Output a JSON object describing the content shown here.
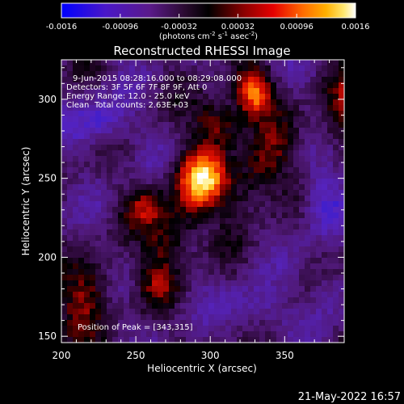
{
  "colorbar": {
    "tick_labels": [
      "-0.0016",
      "-0.00096",
      "-0.00032",
      "0.00032",
      "0.00096",
      "0.0016"
    ],
    "vmin": -0.0016,
    "vmax": 0.0016,
    "unit_label": "(photons cm",
    "unit_exp1": "-2",
    "unit_mid": " s",
    "unit_exp2": "-1",
    "unit_mid2": " asec",
    "unit_exp3": "-2",
    "unit_close": ")"
  },
  "chart_data": {
    "type": "heatmap",
    "title": "Reconstructed RHESSI Image",
    "xlabel": "Heliocentric X (arcsec)",
    "ylabel": "Heliocentric Y (arcsec)",
    "xlim": [
      200,
      390
    ],
    "ylim": [
      146,
      325
    ],
    "x_ticks": [
      200,
      250,
      300,
      350
    ],
    "y_ticks": [
      150,
      200,
      250,
      300
    ],
    "x_tick_labels": [
      "200",
      "250",
      "300",
      "350"
    ],
    "y_tick_labels": [
      "150",
      "200",
      "250",
      "300"
    ],
    "colorscale": "RHESSI standard (blue-purple-black-red-orange-yellow-white)",
    "peak_position": [
      343,
      315
    ],
    "annotations": {
      "time_range": "9-Jun-2015 08:28:16.000 to 08:29:08.000",
      "detectors": "Detectors: 3F 5F 6F 7F 8F 9F, Att 0",
      "energy_range": "Energy Range: 12.0 - 25.0 keV",
      "method": "Clean",
      "total_counts": "Total counts: 2.63E+03",
      "peak_label": "Position of Peak = [343,315]"
    }
  },
  "footer": {
    "date": "21-May-2022 16:57"
  }
}
